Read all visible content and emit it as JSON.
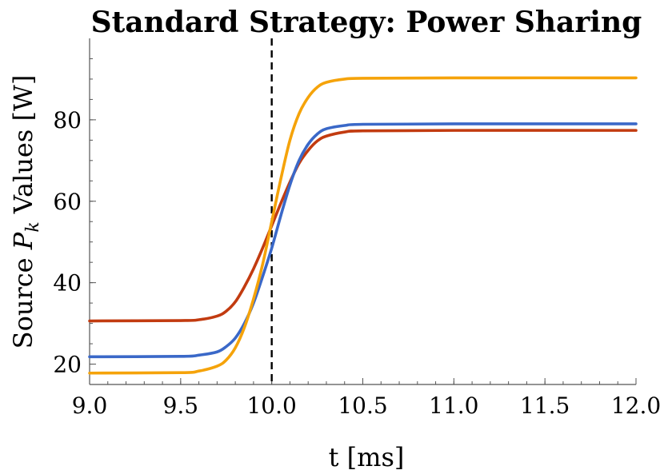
{
  "chart_data": {
    "type": "line",
    "title": "Standard Strategy: Power Sharing",
    "xlabel": "t [ms]",
    "ylabel_prefix": "Source ",
    "ylabel_var": "P",
    "ylabel_sub": "k",
    "ylabel_suffix": " Values [W]",
    "xlim": [
      9.0,
      12.0
    ],
    "ylim": [
      15,
      100
    ],
    "xticks": [
      9.0,
      9.5,
      10.0,
      10.5,
      11.0,
      11.5,
      12.0
    ],
    "xtick_labels": [
      "9.0",
      "9.5",
      "10.0",
      "10.5",
      "11.0",
      "11.5",
      "12.0"
    ],
    "yticks": [
      20,
      40,
      60,
      80
    ],
    "ytick_labels": [
      "20",
      "40",
      "60",
      "80"
    ],
    "vertical_marker_x": 10.0,
    "series": [
      {
        "color": "#c23b10",
        "x": [
          9.0,
          9.5,
          9.6,
          9.7,
          9.75,
          9.8,
          9.85,
          9.9,
          9.95,
          10.0,
          10.05,
          10.1,
          10.15,
          10.2,
          10.25,
          10.3,
          10.4,
          10.5,
          11.0,
          12.0
        ],
        "y": [
          30.6,
          30.7,
          30.9,
          31.8,
          33.0,
          35.3,
          39.0,
          43.4,
          48.5,
          54.0,
          59.5,
          64.7,
          69.3,
          72.5,
          74.8,
          76.0,
          77.0,
          77.3,
          77.4,
          77.4
        ]
      },
      {
        "color": "#3a68c8",
        "x": [
          9.0,
          9.5,
          9.6,
          9.7,
          9.75,
          9.8,
          9.85,
          9.9,
          9.95,
          10.0,
          10.05,
          10.1,
          10.15,
          10.2,
          10.25,
          10.3,
          10.4,
          10.5,
          11.0,
          12.0
        ],
        "y": [
          21.8,
          21.9,
          22.2,
          23.0,
          24.3,
          26.4,
          30.0,
          35.0,
          41.5,
          48.5,
          56.5,
          64.0,
          70.0,
          74.0,
          76.5,
          77.8,
          78.6,
          78.9,
          79.0,
          79.0
        ]
      },
      {
        "color": "#f5a30a",
        "x": [
          9.0,
          9.5,
          9.6,
          9.7,
          9.75,
          9.8,
          9.85,
          9.9,
          9.95,
          10.0,
          10.05,
          10.1,
          10.15,
          10.2,
          10.25,
          10.3,
          10.4,
          10.5,
          11.0,
          12.0
        ],
        "y": [
          17.8,
          17.9,
          18.3,
          19.5,
          21.0,
          24.0,
          29.0,
          36.0,
          44.5,
          55.0,
          65.5,
          75.0,
          81.5,
          85.5,
          88.0,
          89.2,
          90.0,
          90.2,
          90.3,
          90.3
        ]
      }
    ]
  }
}
